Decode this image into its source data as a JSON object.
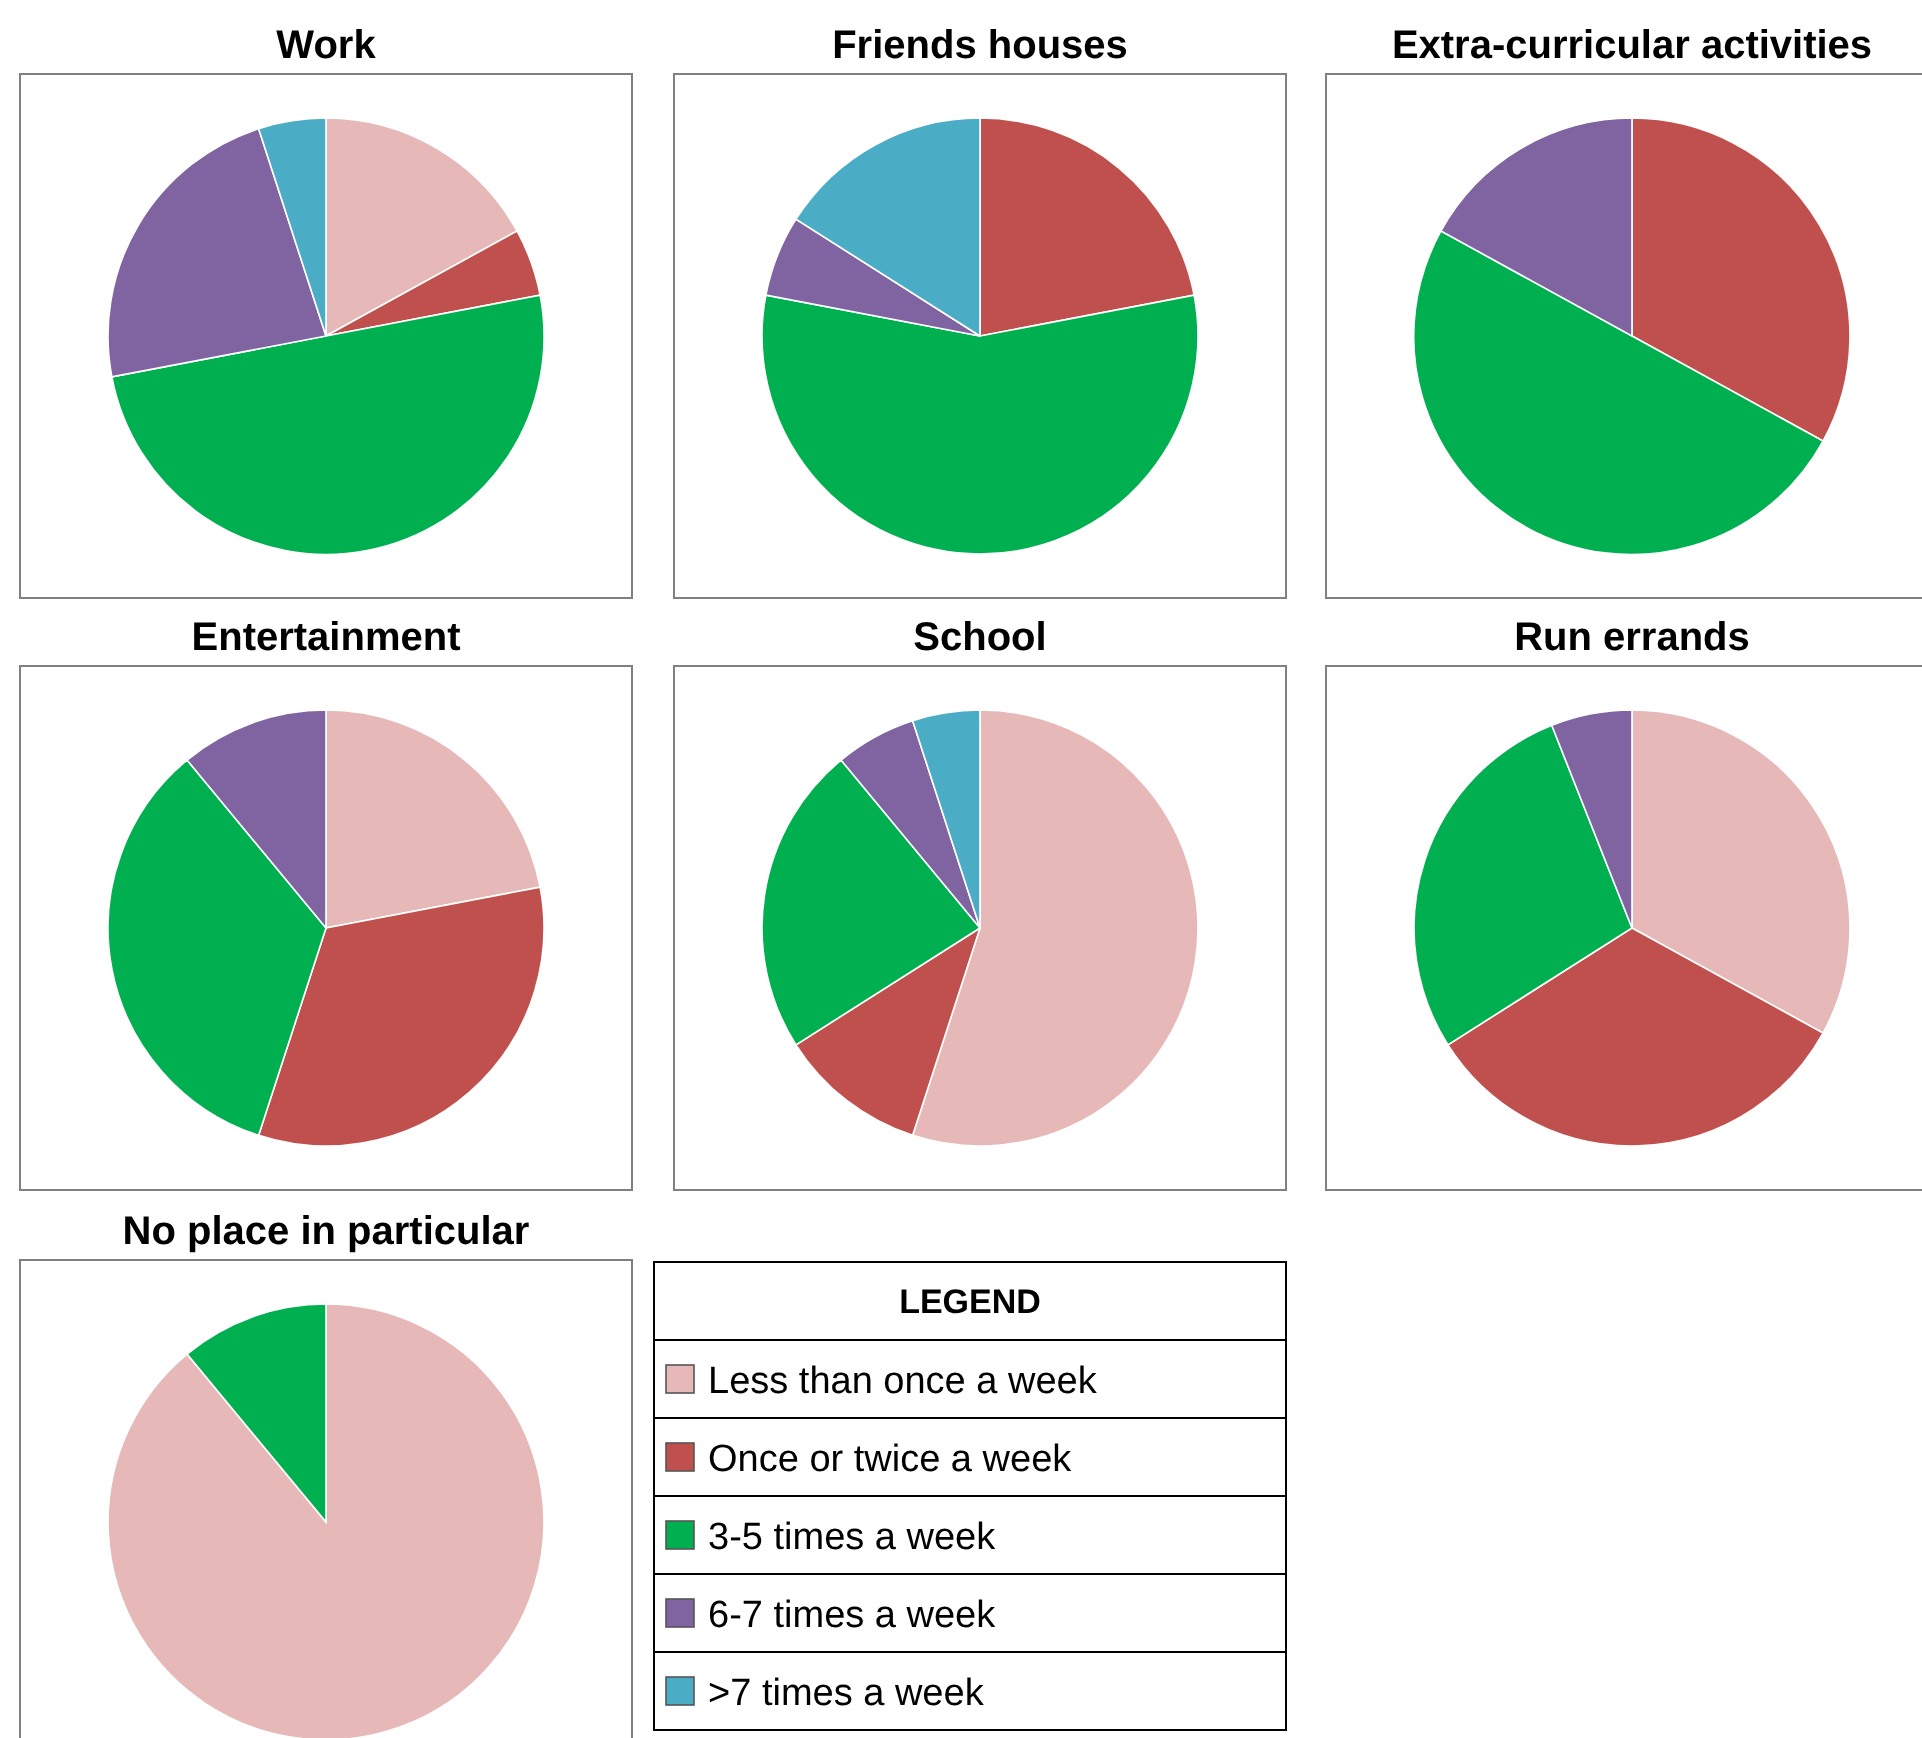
{
  "chart_data": [
    {
      "type": "pie",
      "title": "Work",
      "categories": [
        null,
        null,
        null,
        null,
        null
      ],
      "values": [
        17,
        5,
        50,
        23,
        5
      ],
      "colors": [
        "#e6b9b8",
        "#c0504d",
        "#00b050",
        "#8064a2",
        "#4bacc6"
      ],
      "legend": false
    },
    {
      "type": "pie",
      "title": "Friends houses",
      "categories": [
        null,
        null,
        null,
        null
      ],
      "values": [
        22,
        56,
        6,
        16
      ],
      "colors": [
        "#c0504d",
        "#00b050",
        "#8064a2",
        "#4bacc6"
      ],
      "legend": false
    },
    {
      "type": "pie",
      "title": "Extra-curricular activities",
      "categories": [
        null,
        null,
        null
      ],
      "values": [
        33,
        50,
        17
      ],
      "colors": [
        "#c0504d",
        "#00b050",
        "#8064a2"
      ],
      "legend": false
    },
    {
      "type": "pie",
      "title": "Entertainment",
      "categories": [
        null,
        null,
        null,
        null
      ],
      "values": [
        22,
        33,
        34,
        11
      ],
      "colors": [
        "#e6b9b8",
        "#c0504d",
        "#00b050",
        "#8064a2"
      ],
      "legend": false
    },
    {
      "type": "pie",
      "title": "School",
      "categories": [
        null,
        null,
        null,
        null,
        null
      ],
      "values": [
        55,
        11,
        23,
        6,
        5
      ],
      "colors": [
        "#e6b9b8",
        "#c0504d",
        "#00b050",
        "#8064a2",
        "#4bacc6"
      ],
      "legend": false
    },
    {
      "type": "pie",
      "title": "Run errands",
      "categories": [
        null,
        null,
        null,
        null
      ],
      "values": [
        33,
        33,
        28,
        6
      ],
      "colors": [
        "#e6b9b8",
        "#c0504d",
        "#00b050",
        "#8064a2"
      ],
      "legend": false
    },
    {
      "type": "pie",
      "title": "No place in particular",
      "categories": [
        "Less than once a week",
        "Once or twice a week",
        "3-5 times a week",
        "6-7 times a week",
        ">7 times a week"
      ],
      "values": [
        89,
        0,
        11,
        0,
        0
      ],
      "colors": [
        "#e6b9b8",
        "#c0504d",
        "#00b050",
        "#8064a2",
        "#4bacc6"
      ],
      "legend": "right",
      "legend_title": "LEGEND"
    }
  ]
}
